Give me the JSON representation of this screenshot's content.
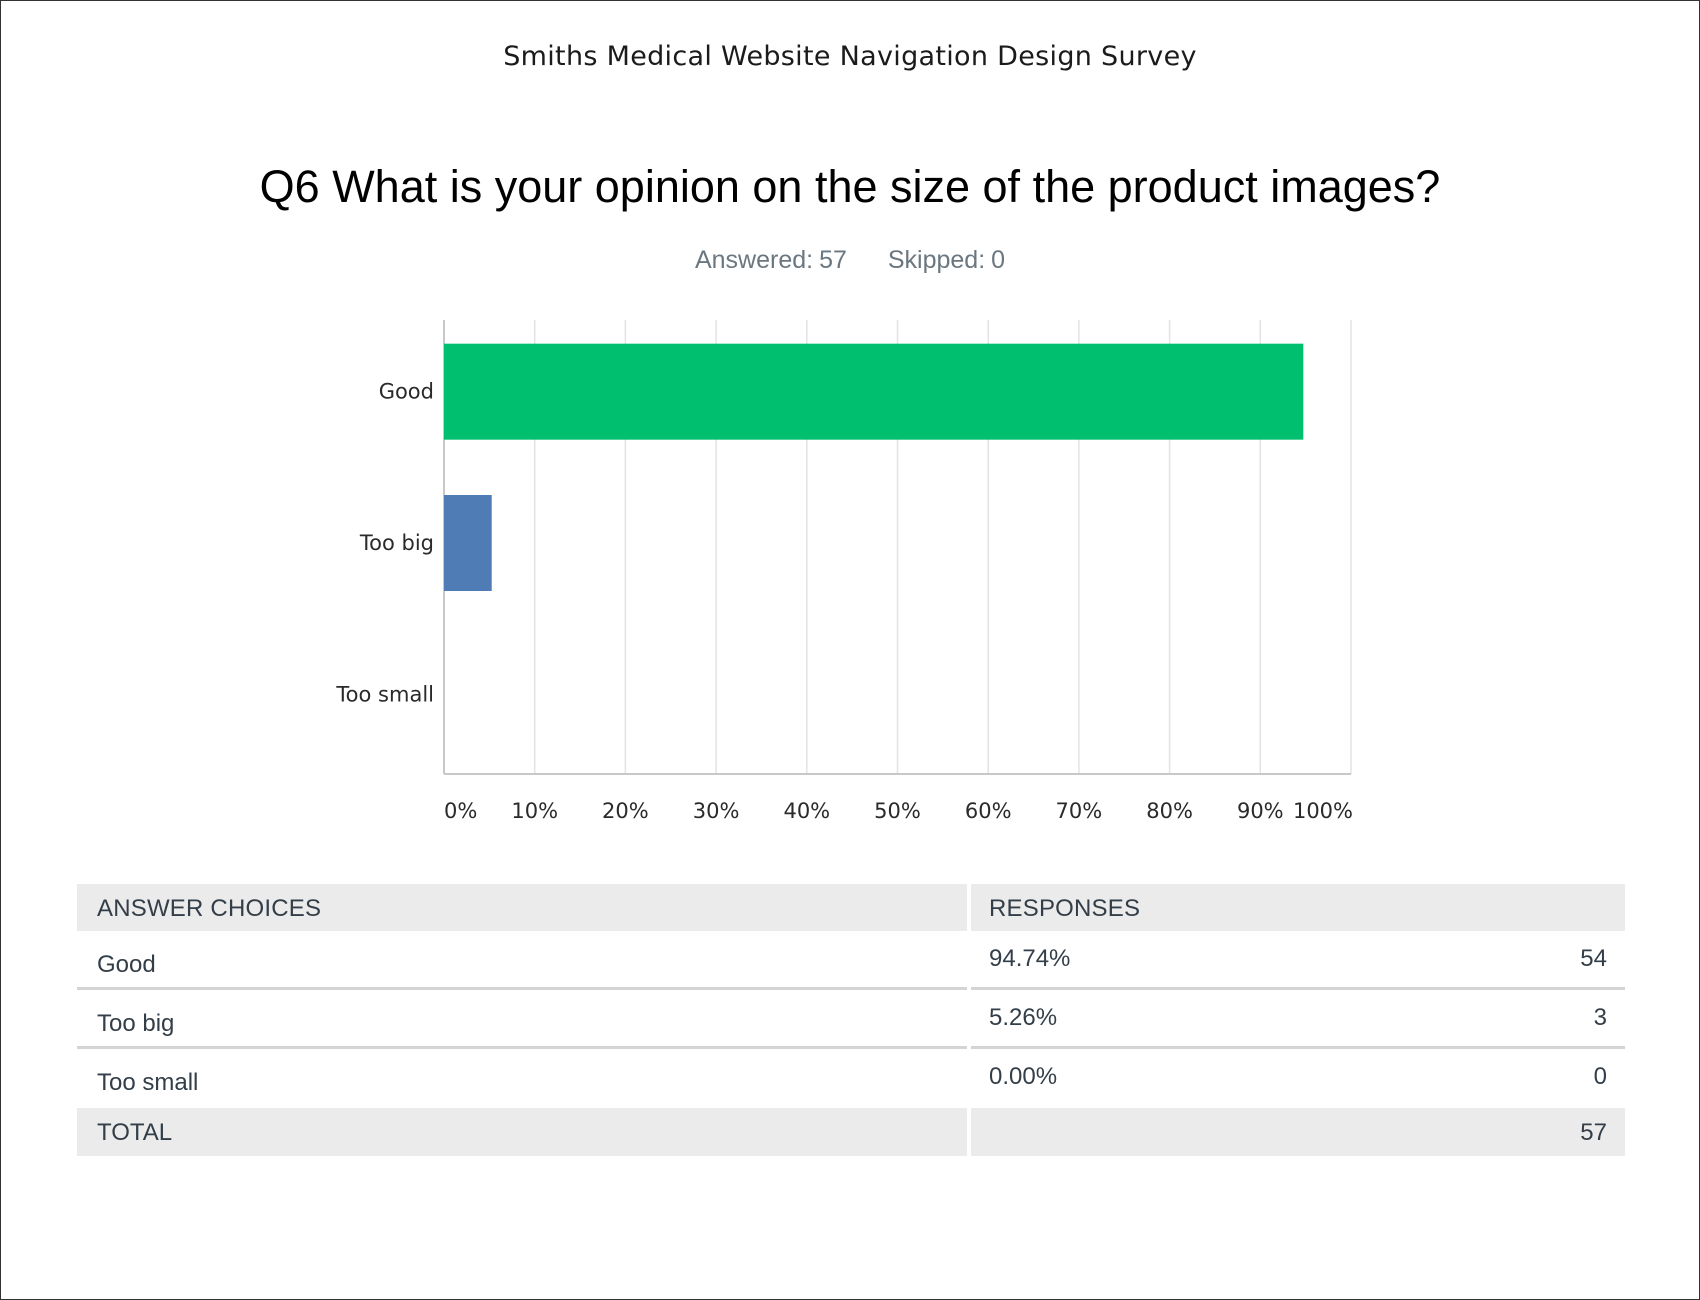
{
  "survey_title": "Smiths Medical Website Navigation Design Survey",
  "question_title": "Q6 What is your opinion on the size of the product images?",
  "stats": {
    "answered_label": "Answered:",
    "answered_value": "57",
    "skipped_label": "Skipped:",
    "skipped_value": "0"
  },
  "chart_data": {
    "type": "bar",
    "orientation": "horizontal",
    "categories": [
      "Good",
      "Too big",
      "Too small"
    ],
    "values": [
      94.74,
      5.26,
      0.0
    ],
    "colors": [
      "#00bf6f",
      "#507cb6",
      "#507cb6"
    ],
    "x_ticks": [
      "0%",
      "10%",
      "20%",
      "30%",
      "40%",
      "50%",
      "60%",
      "70%",
      "80%",
      "90%",
      "100%"
    ],
    "xlim": [
      0,
      100
    ],
    "grid": true,
    "title": "",
    "xlabel": "",
    "ylabel": ""
  },
  "table": {
    "header_choice": "ANSWER CHOICES",
    "header_responses": "RESPONSES",
    "rows": [
      {
        "choice": "Good",
        "percent": "94.74%",
        "count": "54"
      },
      {
        "choice": "Too big",
        "percent": "5.26%",
        "count": "3"
      },
      {
        "choice": "Too small",
        "percent": "0.00%",
        "count": "0"
      }
    ],
    "total_label": "TOTAL",
    "total_count": "57"
  }
}
